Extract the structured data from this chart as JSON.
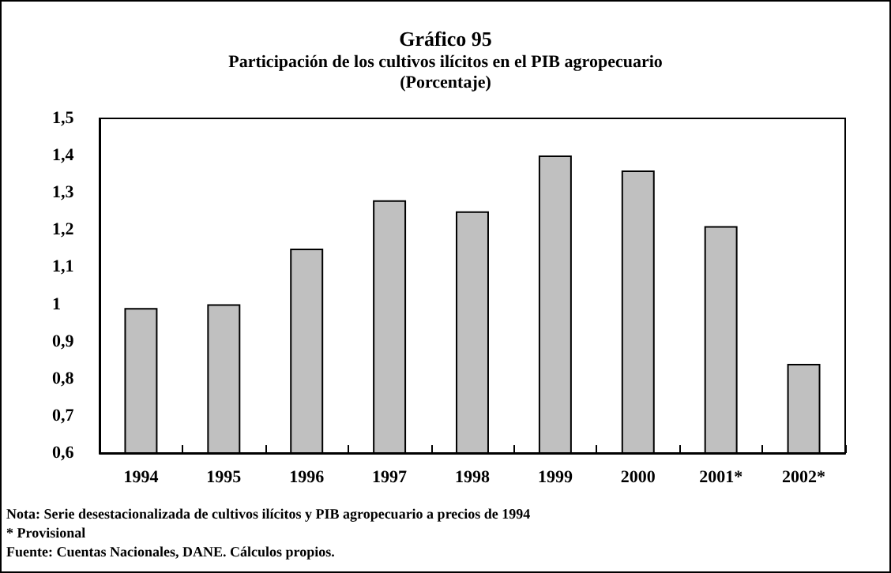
{
  "chart_data": {
    "type": "bar",
    "title": "Gráfico 95",
    "subtitle": "Participación de los cultivos ilícitos en el PIB agropecuario\n(Porcentaje)",
    "categories": [
      "1994",
      "1995",
      "1996",
      "1997",
      "1998",
      "1999",
      "2000",
      "2001*",
      "2002*"
    ],
    "values": [
      0.99,
      1.0,
      1.15,
      1.28,
      1.25,
      1.4,
      1.36,
      1.21,
      0.84
    ],
    "color": "#c0c0c0",
    "ylim": [
      0.6,
      1.5
    ],
    "yticks": [
      {
        "value": 0.6,
        "label": "0,6"
      },
      {
        "value": 0.7,
        "label": "0,7"
      },
      {
        "value": 0.8,
        "label": "0,8"
      },
      {
        "value": 0.9,
        "label": "0,9"
      },
      1,
      {
        "value": 1.1,
        "label": "1,1"
      },
      {
        "value": 1.2,
        "label": "1,2"
      },
      {
        "value": 1.3,
        "label": "1,3"
      },
      {
        "value": 1.4,
        "label": "1,4"
      },
      {
        "value": 1.5,
        "label": "1,5"
      }
    ],
    "grid": false,
    "annotations": [
      "Nota: Serie desestacionalizada de cultivos ilícitos y PIB agropecuario a precios de 1994",
      "* Provisional",
      "Fuente: Cuentas Nacionales, DANE. Cálculos propios."
    ]
  }
}
